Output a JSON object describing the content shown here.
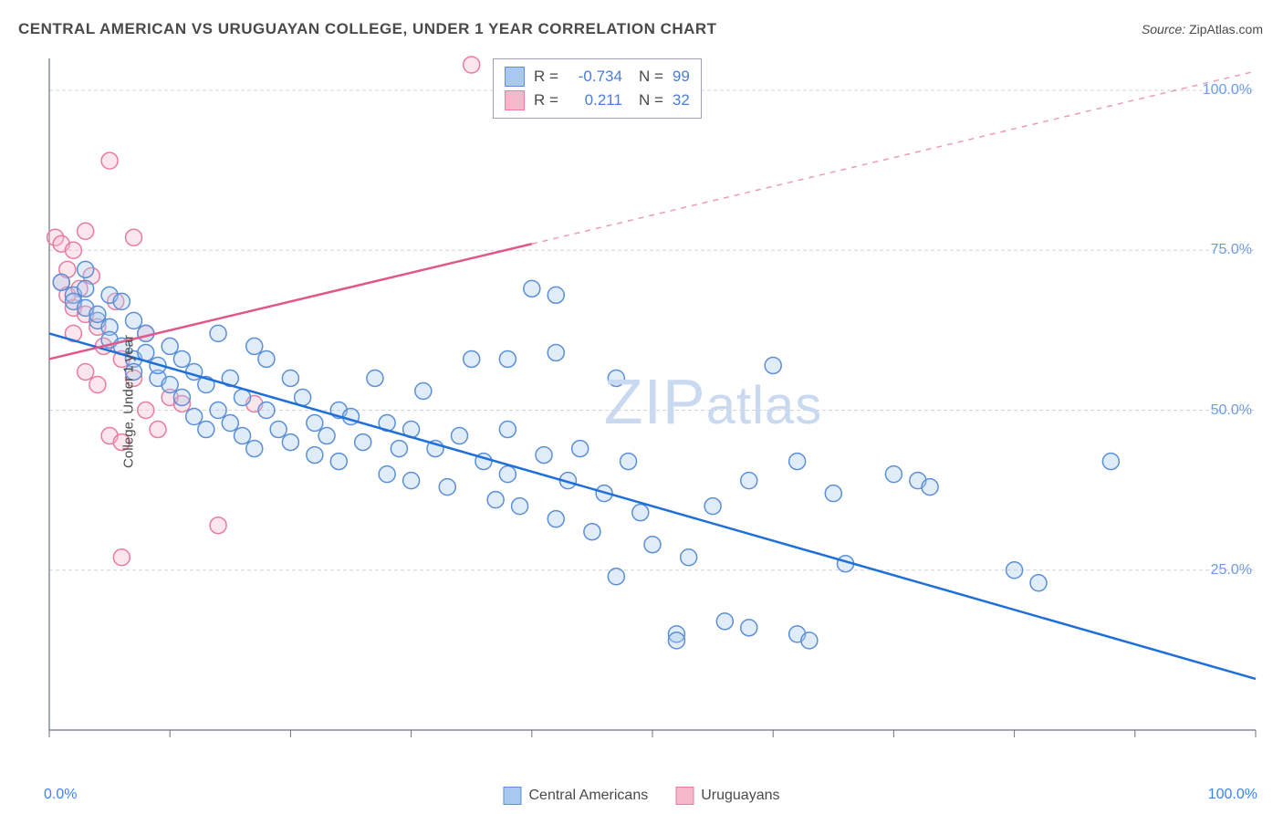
{
  "title": "CENTRAL AMERICAN VS URUGUAYAN COLLEGE, UNDER 1 YEAR CORRELATION CHART",
  "source_label": "Source:",
  "source_value": "ZipAtlas.com",
  "ylabel": "College, Under 1 year",
  "watermark_bold": "ZIP",
  "watermark_rest": "atlas",
  "chart": {
    "type": "scatter",
    "background_color": "#ffffff",
    "grid_color": "#d1d5db",
    "grid_dash": "4,3",
    "axis_color": "#6b7280",
    "xlim": [
      0,
      100
    ],
    "ylim": [
      0,
      105
    ],
    "x_ticks": [
      0,
      10,
      20,
      30,
      40,
      50,
      60,
      70,
      80,
      90,
      100
    ],
    "x_tick_labels_show_ends_only": true,
    "x_min_label": "0.0%",
    "x_max_label": "100.0%",
    "y_gridlines": [
      25,
      50,
      75,
      100
    ],
    "y_tick_labels": [
      "25.0%",
      "50.0%",
      "75.0%",
      "100.0%"
    ],
    "tick_label_color": "#6b9be8",
    "tick_label_fontsize": 16,
    "title_fontsize": 17,
    "label_fontsize": 15,
    "marker_radius": 9,
    "marker_stroke_width": 1.5,
    "marker_fill_opacity": 0.35,
    "line_width": 2.5,
    "series": [
      {
        "name": "Central Americans",
        "marker_fill": "#a8c8ef",
        "marker_stroke": "#5b8fd6",
        "line_color": "#1e6fd9",
        "r_value": "-0.734",
        "n_value": "99",
        "regression": {
          "x1": 0,
          "y1": 62,
          "x2": 100,
          "y2": 8,
          "solid_until_x": 100
        },
        "points": [
          [
            1,
            70
          ],
          [
            2,
            68
          ],
          [
            2,
            67
          ],
          [
            3,
            69
          ],
          [
            3,
            66
          ],
          [
            3,
            72
          ],
          [
            4,
            64
          ],
          [
            4,
            65
          ],
          [
            5,
            68
          ],
          [
            5,
            63
          ],
          [
            5,
            61
          ],
          [
            6,
            67
          ],
          [
            6,
            60
          ],
          [
            7,
            64
          ],
          [
            7,
            58
          ],
          [
            7,
            56
          ],
          [
            8,
            62
          ],
          [
            8,
            59
          ],
          [
            9,
            55
          ],
          [
            9,
            57
          ],
          [
            10,
            60
          ],
          [
            10,
            54
          ],
          [
            11,
            58
          ],
          [
            11,
            52
          ],
          [
            12,
            56
          ],
          [
            12,
            49
          ],
          [
            13,
            54
          ],
          [
            13,
            47
          ],
          [
            14,
            62
          ],
          [
            14,
            50
          ],
          [
            15,
            55
          ],
          [
            15,
            48
          ],
          [
            16,
            52
          ],
          [
            16,
            46
          ],
          [
            17,
            60
          ],
          [
            17,
            44
          ],
          [
            18,
            50
          ],
          [
            18,
            58
          ],
          [
            19,
            47
          ],
          [
            20,
            55
          ],
          [
            20,
            45
          ],
          [
            21,
            52
          ],
          [
            22,
            48
          ],
          [
            22,
            43
          ],
          [
            23,
            46
          ],
          [
            24,
            50
          ],
          [
            24,
            42
          ],
          [
            25,
            49
          ],
          [
            26,
            45
          ],
          [
            27,
            55
          ],
          [
            28,
            48
          ],
          [
            28,
            40
          ],
          [
            29,
            44
          ],
          [
            30,
            47
          ],
          [
            30,
            39
          ],
          [
            31,
            53
          ],
          [
            32,
            44
          ],
          [
            33,
            38
          ],
          [
            34,
            46
          ],
          [
            35,
            58
          ],
          [
            36,
            42
          ],
          [
            37,
            36
          ],
          [
            38,
            40
          ],
          [
            38,
            47
          ],
          [
            39,
            35
          ],
          [
            40,
            69
          ],
          [
            41,
            43
          ],
          [
            42,
            33
          ],
          [
            42,
            59
          ],
          [
            43,
            39
          ],
          [
            44,
            44
          ],
          [
            45,
            31
          ],
          [
            46,
            37
          ],
          [
            47,
            24
          ],
          [
            48,
            42
          ],
          [
            49,
            34
          ],
          [
            50,
            29
          ],
          [
            52,
            15
          ],
          [
            52,
            14
          ],
          [
            53,
            27
          ],
          [
            55,
            35
          ],
          [
            56,
            17
          ],
          [
            58,
            39
          ],
          [
            58,
            16
          ],
          [
            60,
            57
          ],
          [
            62,
            15
          ],
          [
            62,
            42
          ],
          [
            63,
            14
          ],
          [
            65,
            37
          ],
          [
            66,
            26
          ],
          [
            70,
            40
          ],
          [
            72,
            39
          ],
          [
            73,
            38
          ],
          [
            80,
            25
          ],
          [
            82,
            23
          ],
          [
            88,
            42
          ],
          [
            42,
            68
          ],
          [
            38,
            58
          ],
          [
            47,
            55
          ]
        ]
      },
      {
        "name": "Uruguayans",
        "marker_fill": "#f5b8ca",
        "marker_stroke": "#e87ba0",
        "line_color": "#e0588a",
        "r_value": "0.211",
        "n_value": "32",
        "regression": {
          "x1": 0,
          "y1": 58,
          "x2": 100,
          "y2": 103,
          "solid_until_x": 40
        },
        "points": [
          [
            0.5,
            77
          ],
          [
            1,
            76
          ],
          [
            1,
            70
          ],
          [
            1.5,
            72
          ],
          [
            1.5,
            68
          ],
          [
            2,
            75
          ],
          [
            2,
            66
          ],
          [
            2,
            62
          ],
          [
            2.5,
            69
          ],
          [
            3,
            78
          ],
          [
            3,
            65
          ],
          [
            3,
            56
          ],
          [
            3.5,
            71
          ],
          [
            4,
            63
          ],
          [
            4,
            54
          ],
          [
            4.5,
            60
          ],
          [
            5,
            46
          ],
          [
            5,
            89
          ],
          [
            5.5,
            67
          ],
          [
            6,
            58
          ],
          [
            6,
            45
          ],
          [
            7,
            77
          ],
          [
            7,
            55
          ],
          [
            8,
            50
          ],
          [
            8,
            62
          ],
          [
            9,
            47
          ],
          [
            10,
            52
          ],
          [
            11,
            51
          ],
          [
            14,
            32
          ],
          [
            17,
            51
          ],
          [
            35,
            104
          ],
          [
            6,
            27
          ]
        ]
      }
    ]
  },
  "legend": {
    "series1_label": "Central Americans",
    "series2_label": "Uruguayans",
    "r_label": "R =",
    "n_label": "N ="
  }
}
